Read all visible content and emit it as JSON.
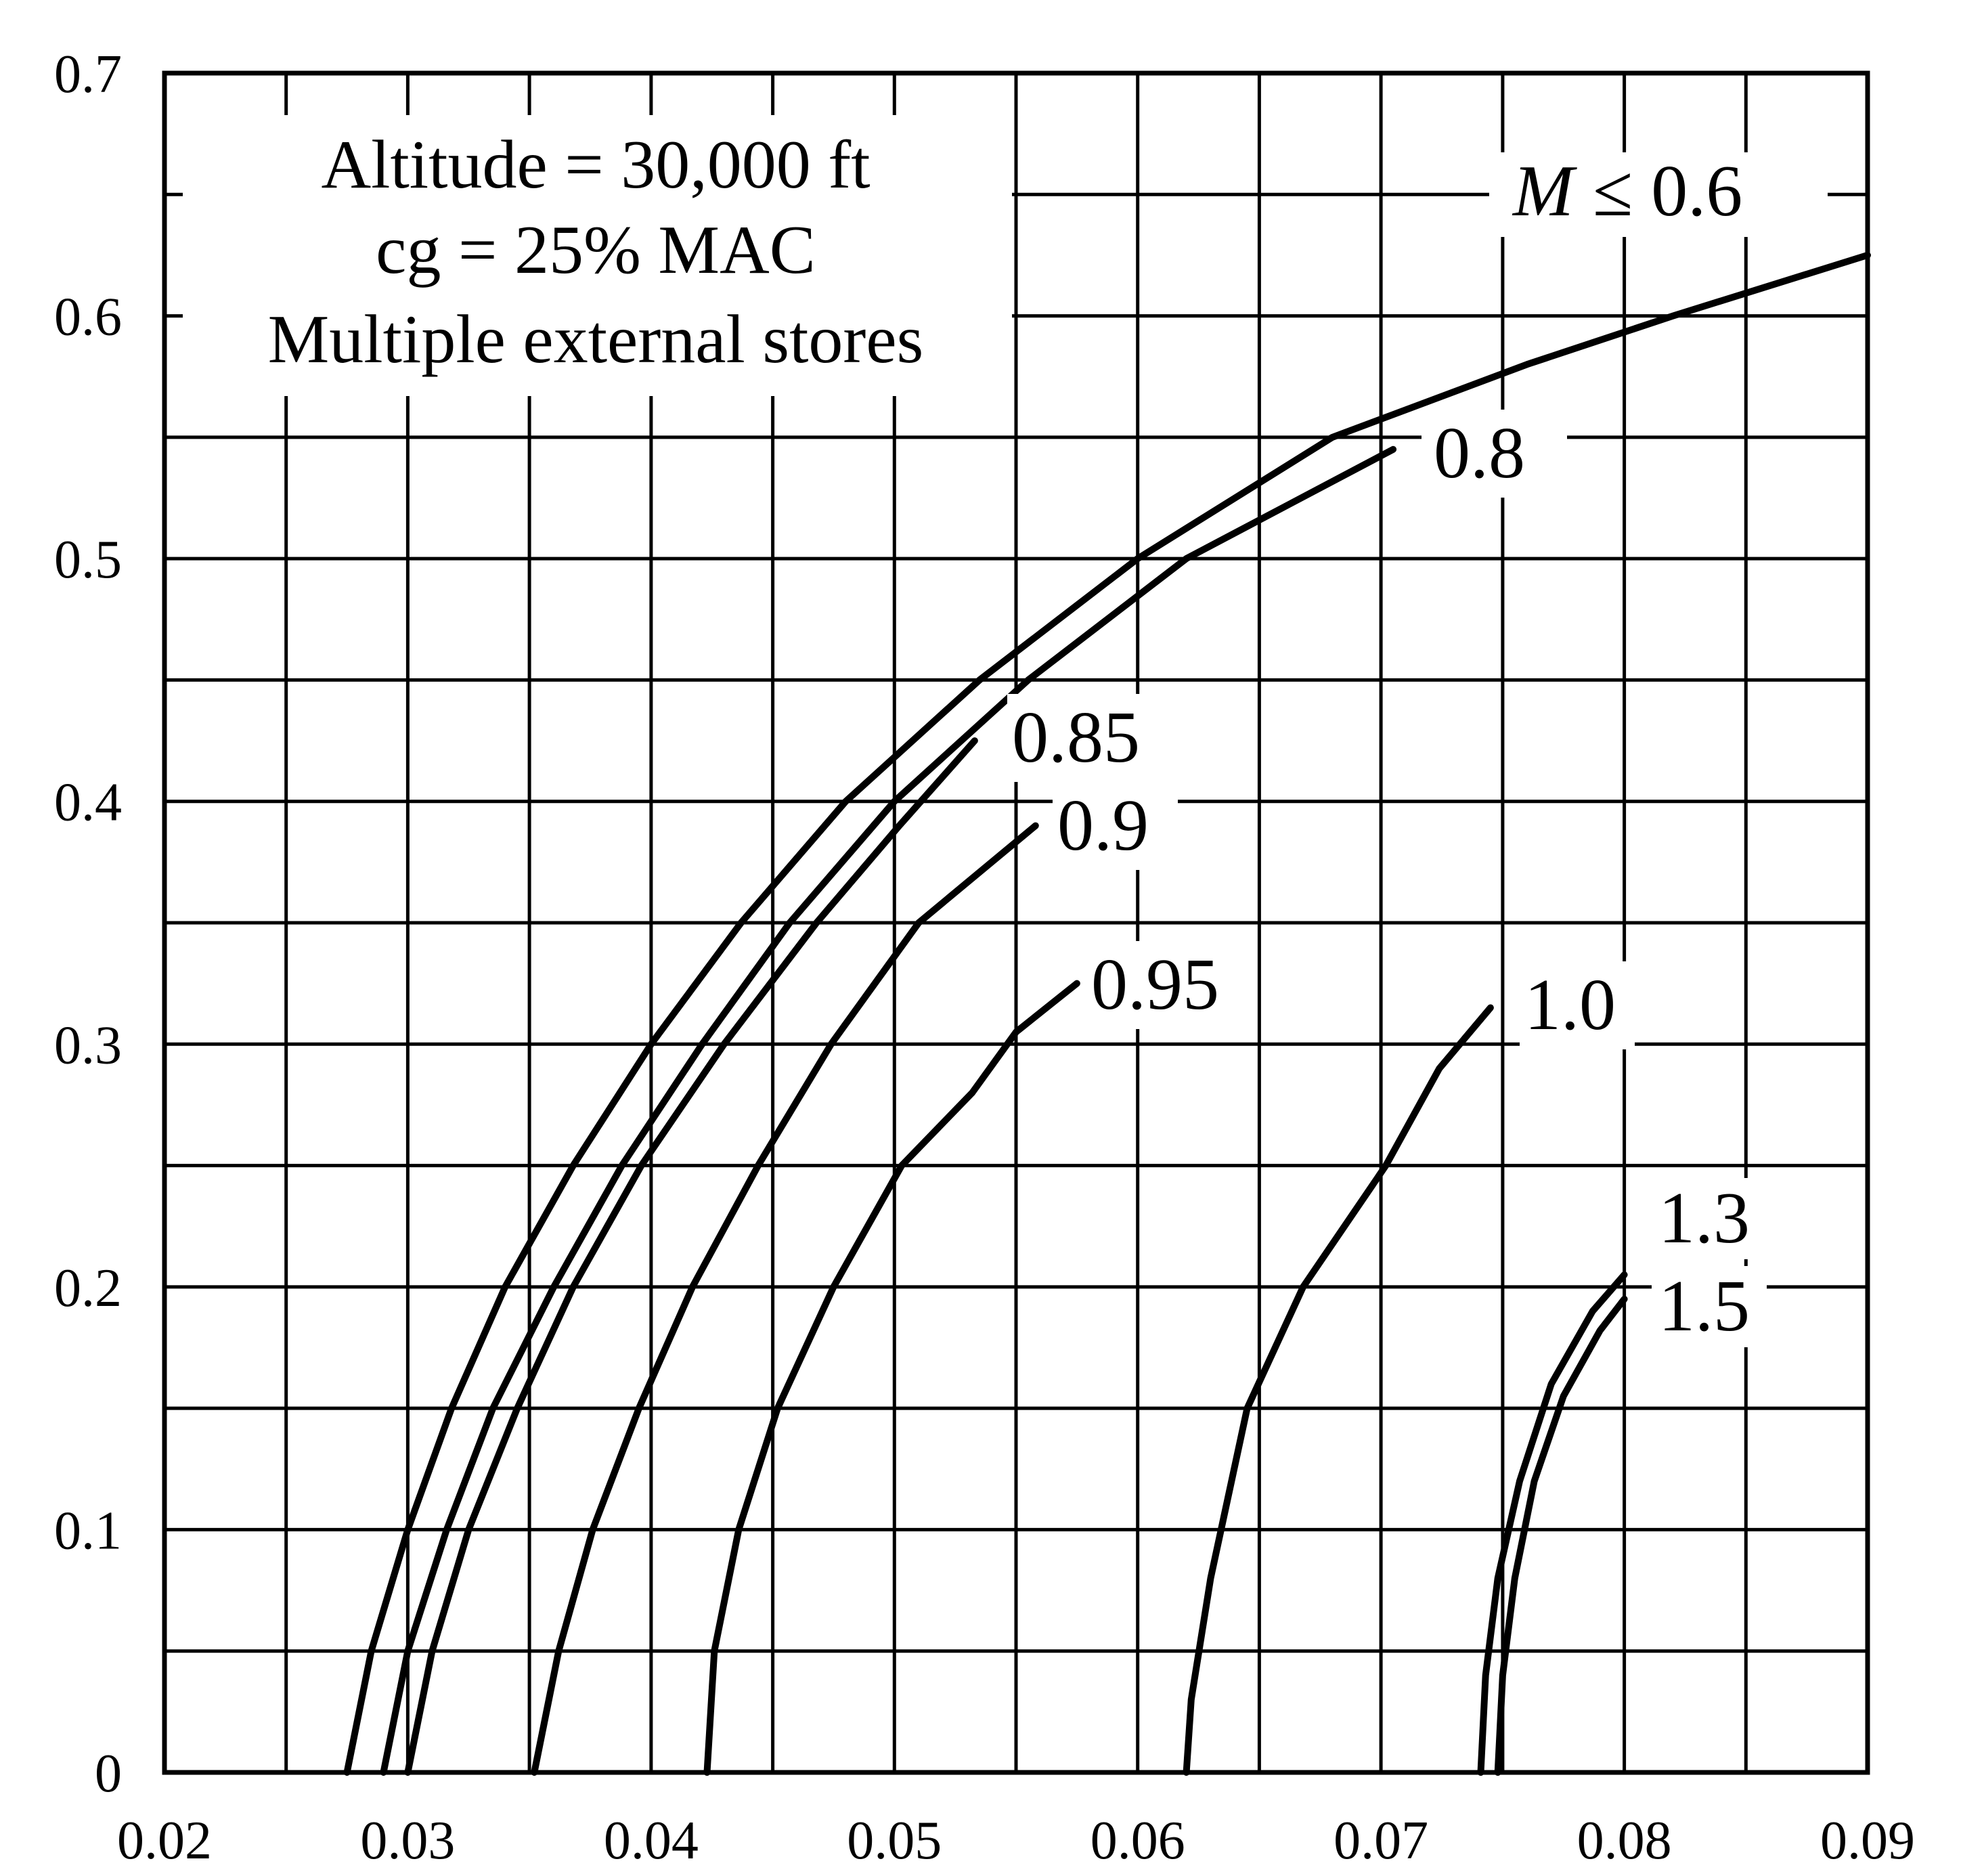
{
  "chart_data": {
    "type": "line",
    "title": "",
    "xlabel": "",
    "ylabel": "",
    "xlim": [
      0.02,
      0.09
    ],
    "ylim": [
      0,
      0.7
    ],
    "grid": true,
    "x_ticks": [
      "0.02",
      "0.03",
      "0.04",
      "0.05",
      "0.06",
      "0.07",
      "0.08",
      "0.09"
    ],
    "y_ticks": [
      "0",
      "0.1",
      "0.2",
      "0.3",
      "0.4",
      "0.5",
      "0.6",
      "0.7"
    ],
    "annotations": [
      "Altitude = 30,000 ft",
      "cg = 25% MAC",
      "Multiple external stores"
    ],
    "series": [
      {
        "label_prefix": "M",
        "name": "≤ 0.6",
        "points": [
          [
            0.0275,
            0
          ],
          [
            0.0285,
            0.05
          ],
          [
            0.03,
            0.1
          ],
          [
            0.0318,
            0.15
          ],
          [
            0.034,
            0.2
          ],
          [
            0.0368,
            0.25
          ],
          [
            0.04,
            0.3
          ],
          [
            0.0437,
            0.35
          ],
          [
            0.048,
            0.4
          ],
          [
            0.0535,
            0.45
          ],
          [
            0.06,
            0.5
          ],
          [
            0.068,
            0.55
          ],
          [
            0.076,
            0.58
          ],
          [
            0.082,
            0.6
          ],
          [
            0.09,
            0.625
          ]
        ]
      },
      {
        "name": "0.8",
        "points": [
          [
            0.029,
            0
          ],
          [
            0.03,
            0.05
          ],
          [
            0.0316,
            0.1
          ],
          [
            0.0335,
            0.15
          ],
          [
            0.036,
            0.2
          ],
          [
            0.0388,
            0.25
          ],
          [
            0.0421,
            0.3
          ],
          [
            0.0457,
            0.35
          ],
          [
            0.05,
            0.4
          ],
          [
            0.0555,
            0.45
          ],
          [
            0.062,
            0.5
          ],
          [
            0.0705,
            0.545
          ]
        ]
      },
      {
        "name": "0.85",
        "points": [
          [
            0.03,
            0
          ],
          [
            0.031,
            0.05
          ],
          [
            0.0325,
            0.1
          ],
          [
            0.0345,
            0.15
          ],
          [
            0.0368,
            0.2
          ],
          [
            0.0396,
            0.25
          ],
          [
            0.043,
            0.3
          ],
          [
            0.0468,
            0.35
          ],
          [
            0.0502,
            0.39
          ],
          [
            0.0533,
            0.425
          ]
        ]
      },
      {
        "name": "0.9",
        "points": [
          [
            0.0352,
            0
          ],
          [
            0.0362,
            0.05
          ],
          [
            0.0376,
            0.1
          ],
          [
            0.0395,
            0.15
          ],
          [
            0.0417,
            0.2
          ],
          [
            0.0444,
            0.25
          ],
          [
            0.0474,
            0.3
          ],
          [
            0.051,
            0.35
          ],
          [
            0.0558,
            0.39
          ]
        ]
      },
      {
        "name": "0.95",
        "points": [
          [
            0.0423,
            0
          ],
          [
            0.0426,
            0.05
          ],
          [
            0.0436,
            0.1
          ],
          [
            0.0452,
            0.15
          ],
          [
            0.0475,
            0.2
          ],
          [
            0.0503,
            0.25
          ],
          [
            0.0532,
            0.28
          ],
          [
            0.055,
            0.305
          ],
          [
            0.0575,
            0.325
          ]
        ]
      },
      {
        "name": "1.0",
        "points": [
          [
            0.062,
            0
          ],
          [
            0.0622,
            0.03
          ],
          [
            0.063,
            0.08
          ],
          [
            0.0645,
            0.15
          ],
          [
            0.0668,
            0.2
          ],
          [
            0.0702,
            0.25
          ],
          [
            0.0724,
            0.29
          ],
          [
            0.0745,
            0.315
          ]
        ]
      },
      {
        "name": "1.3",
        "points": [
          [
            0.0741,
            0
          ],
          [
            0.0743,
            0.04
          ],
          [
            0.0748,
            0.08
          ],
          [
            0.0757,
            0.12
          ],
          [
            0.077,
            0.16
          ],
          [
            0.0787,
            0.19
          ],
          [
            0.08,
            0.205
          ]
        ]
      },
      {
        "name": "1.5",
        "points": [
          [
            0.0748,
            0
          ],
          [
            0.075,
            0.04
          ],
          [
            0.0755,
            0.08
          ],
          [
            0.0763,
            0.12
          ],
          [
            0.0775,
            0.155
          ],
          [
            0.079,
            0.182
          ],
          [
            0.08,
            0.195
          ]
        ]
      }
    ]
  }
}
